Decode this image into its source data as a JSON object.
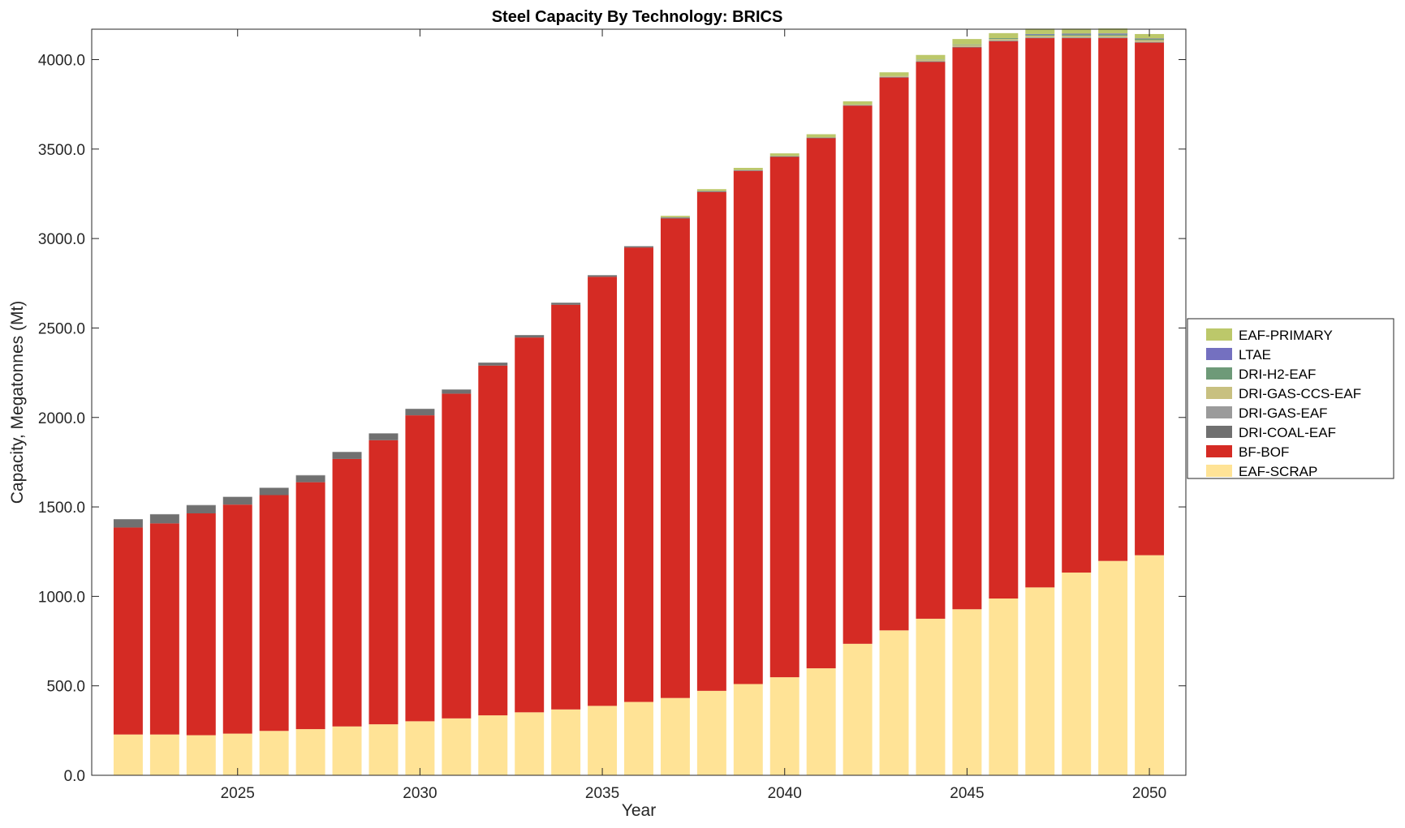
{
  "chart_data": {
    "type": "bar",
    "stacked": true,
    "title": "Steel Capacity By Technology: BRICS",
    "xlabel": "Year",
    "ylabel": "Capacity, Megatonnes (Mt)",
    "xlim": [
      2021,
      2051
    ],
    "ylim": [
      0,
      4170
    ],
    "x_ticks": [
      2025,
      2030,
      2035,
      2040,
      2045,
      2050
    ],
    "y_ticks": [
      0,
      500,
      1000,
      1500,
      2000,
      2500,
      3000,
      3500,
      4000
    ],
    "y_tick_labels": [
      "0.0",
      "500.0",
      "1000.0",
      "1500.0",
      "2000.0",
      "2500.0",
      "3000.0",
      "3500.0",
      "4000.0"
    ],
    "grid": false,
    "legend_placement": "right",
    "categories": [
      2022,
      2023,
      2024,
      2025,
      2026,
      2027,
      2028,
      2029,
      2030,
      2031,
      2032,
      2033,
      2034,
      2035,
      2036,
      2037,
      2038,
      2039,
      2040,
      2041,
      2042,
      2043,
      2044,
      2045,
      2046,
      2047,
      2048,
      2049,
      2050
    ],
    "series": [
      {
        "name": "EAF-SCRAP",
        "color": "#ffe396",
        "values": [
          228,
          228,
          224,
          233,
          248,
          258,
          273,
          285,
          302,
          318,
          335,
          352,
          368,
          388,
          410,
          432,
          472,
          510,
          548,
          598,
          735,
          810,
          875,
          928,
          988,
          1050,
          1133,
          1198,
          1230
        ]
      },
      {
        "name": "BF-BOF",
        "color": "#d52b24",
        "values": [
          1157,
          1180,
          1240,
          1280,
          1318,
          1380,
          1495,
          1588,
          1710,
          1815,
          1955,
          2095,
          2262,
          2398,
          2540,
          2680,
          2788,
          2868,
          2908,
          2963,
          3008,
          3090,
          3112,
          3140,
          3115,
          3070,
          2987,
          2922,
          2865
        ]
      },
      {
        "name": "DRI-COAL-EAF",
        "color": "#707070",
        "values": [
          45,
          50,
          45,
          42,
          40,
          38,
          38,
          37,
          35,
          22,
          15,
          12,
          10,
          8,
          6,
          5,
          4,
          3,
          3,
          2,
          2,
          2,
          2,
          2,
          2,
          2,
          2,
          2,
          2
        ]
      },
      {
        "name": "DRI-GAS-EAF",
        "color": "#9b9b9b",
        "values": [
          2,
          2,
          2,
          2,
          2,
          2,
          2,
          2,
          2,
          2,
          2,
          2,
          2,
          2,
          2,
          2,
          2,
          2,
          2,
          2,
          2,
          2,
          2,
          2,
          2,
          2,
          2,
          2,
          2
        ]
      },
      {
        "name": "DRI-GAS-CCS-EAF",
        "color": "#c8c080",
        "values": [
          0,
          0,
          0,
          0,
          0,
          0,
          0,
          0,
          0,
          0,
          0,
          0,
          0,
          0,
          0,
          0,
          0,
          0,
          0,
          0,
          0,
          5,
          8,
          10,
          8,
          10,
          10,
          10,
          10
        ]
      },
      {
        "name": "DRI-H2-EAF",
        "color": "#6e9a78",
        "values": [
          0,
          0,
          0,
          0,
          0,
          0,
          0,
          0,
          0,
          0,
          0,
          0,
          0,
          0,
          0,
          0,
          0,
          0,
          0,
          0,
          0,
          0,
          2,
          3,
          5,
          6,
          7,
          7,
          7
        ]
      },
      {
        "name": "LTAE",
        "color": "#7470c0",
        "values": [
          0,
          0,
          0,
          0,
          0,
          0,
          0,
          0,
          0,
          0,
          0,
          0,
          0,
          0,
          0,
          0,
          0,
          0,
          0,
          0,
          0,
          0,
          0,
          0,
          0,
          3,
          4,
          5,
          2
        ]
      },
      {
        "name": "EAF-PRIMARY",
        "color": "#bcc86a",
        "values": [
          0,
          0,
          0,
          0,
          0,
          0,
          0,
          0,
          0,
          0,
          0,
          0,
          0,
          0,
          0,
          8,
          10,
          12,
          15,
          18,
          20,
          20,
          25,
          30,
          28,
          30,
          28,
          28,
          25
        ]
      }
    ],
    "legend": [
      "EAF-PRIMARY",
      "LTAE",
      "DRI-H2-EAF",
      "DRI-GAS-CCS-EAF",
      "DRI-GAS-EAF",
      "DRI-COAL-EAF",
      "BF-BOF",
      "EAF-SCRAP"
    ]
  }
}
